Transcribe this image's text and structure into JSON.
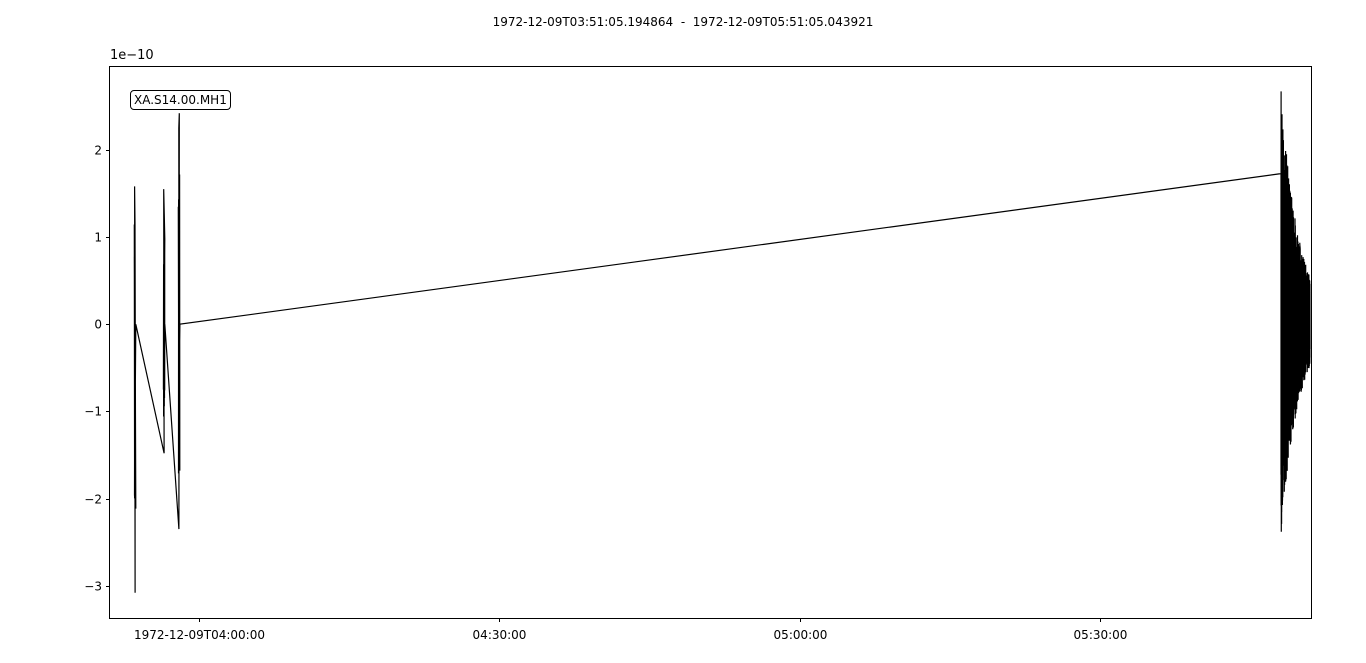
{
  "chart_data": {
    "type": "line",
    "title": "1972-12-09T03:51:05.194864  -  1972-12-09T05:51:05.043921",
    "trace_label": "XA.S14.00.MH1",
    "y_offset_label": "1e−10",
    "y_unit_multiplier": 1e-10,
    "xlim_minutes": [
      0,
      120
    ],
    "ylim": [
      -3.37,
      2.95
    ],
    "x_ticks": [
      {
        "minutes": 8.9,
        "label": "1972-12-09T04:00:00"
      },
      {
        "minutes": 38.9,
        "label": "04:30:00"
      },
      {
        "minutes": 68.9,
        "label": "05:00:00"
      },
      {
        "minutes": 98.9,
        "label": "05:30:00"
      }
    ],
    "y_ticks": [
      {
        "value": 2,
        "label": "2"
      },
      {
        "value": 1,
        "label": "1"
      },
      {
        "value": 0,
        "label": "0"
      },
      {
        "value": -1,
        "label": "−1"
      },
      {
        "value": -2,
        "label": "−2"
      },
      {
        "value": -3,
        "label": "−3"
      }
    ],
    "series": [
      {
        "color": "#000000",
        "bursts": [
          {
            "t": 2.5,
            "min": -3.08,
            "max": 1.58
          },
          {
            "t": 5.4,
            "min": -1.48,
            "max": 1.55
          },
          {
            "t": 6.9,
            "min": -2.35,
            "max": 2.42
          },
          {
            "t": 117.0,
            "min": -2.38,
            "max": 2.67
          }
        ]
      }
    ],
    "grid": false
  }
}
